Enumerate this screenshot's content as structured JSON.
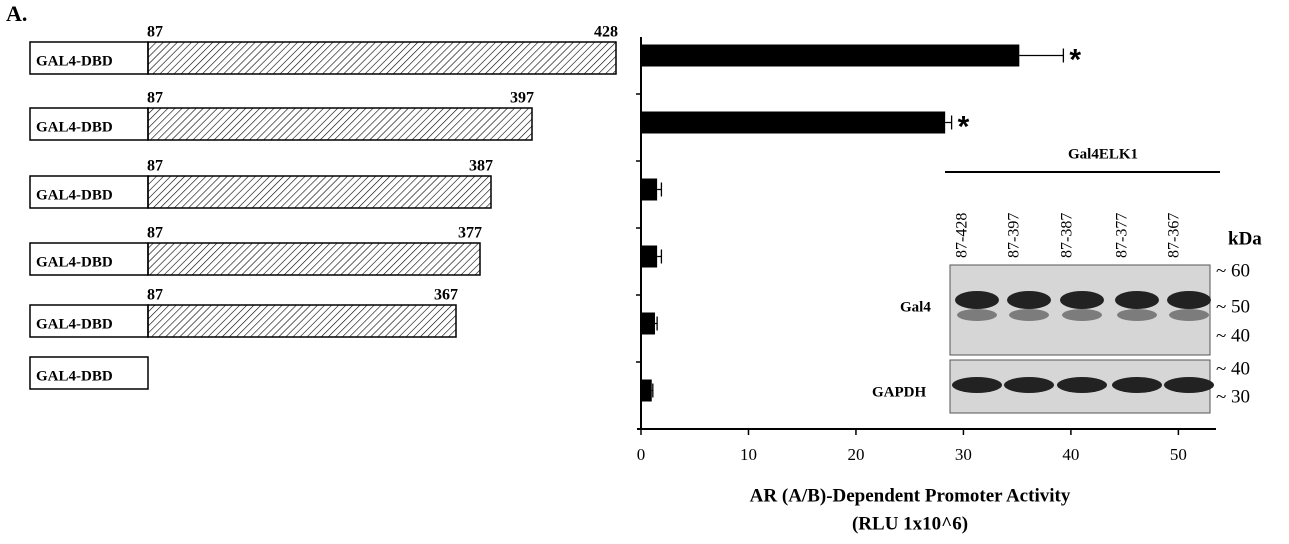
{
  "panel_label": "A.",
  "constructs": [
    {
      "label": "GAL4-DBD",
      "start": "87",
      "end": "428"
    },
    {
      "label": "GAL4-DBD",
      "start": "87",
      "end": "397"
    },
    {
      "label": "GAL4-DBD",
      "start": "87",
      "end": "387"
    },
    {
      "label": "GAL4-DBD",
      "start": "87",
      "end": "377"
    },
    {
      "label": "GAL4-DBD",
      "start": "87",
      "end": "367"
    },
    {
      "label": "GAL4-DBD"
    }
  ],
  "chart_data": {
    "type": "bar",
    "orientation": "horizontal",
    "categories": [
      null,
      null,
      null,
      null,
      null,
      null
    ],
    "values": [
      35.2,
      28.3,
      1.5,
      1.5,
      1.3,
      1.0
    ],
    "errors": [
      4.1,
      0.6,
      0.4,
      0.4,
      0.2,
      0.1
    ],
    "significance": [
      "*",
      "*",
      null,
      null,
      null,
      null
    ],
    "color": "#000000",
    "xlabel": [
      "AR (A/B)-Dependent Promoter Activity",
      "(RLU 1x10^6)"
    ],
    "xlim": [
      0,
      53.5
    ],
    "xticks": [
      0,
      10,
      20,
      30,
      40,
      50
    ]
  },
  "blot": {
    "title": "Gal4ELK1",
    "lanes": [
      "87-428",
      "87-397",
      "87-387",
      "87-377",
      "87-367"
    ],
    "unit": "kDa",
    "rows": [
      {
        "label": "Gal4",
        "markers": [
          "~ 60",
          "~ 50",
          "~ 40"
        ]
      },
      {
        "label": "GAPDH",
        "markers": [
          "~ 40",
          "~ 30"
        ]
      }
    ]
  }
}
